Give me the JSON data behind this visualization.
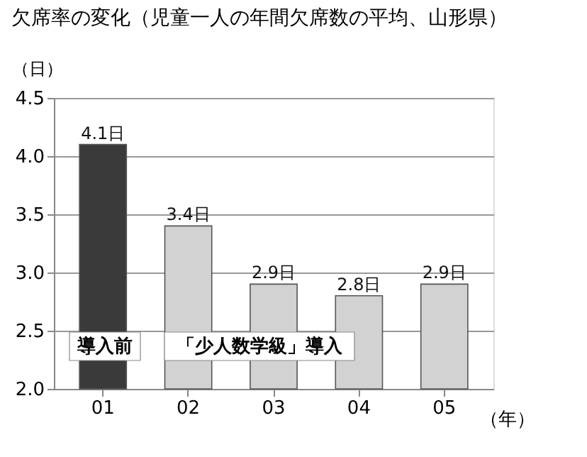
{
  "chart_data": {
    "type": "bar",
    "title": "欠席率の変化（児童一人の年間欠席数の平均、山形県）",
    "categories": [
      "01",
      "02",
      "03",
      "04",
      "05"
    ],
    "values": [
      4.1,
      3.4,
      2.9,
      2.8,
      2.9
    ],
    "colors": [
      "#3a3a3a",
      "#d2d2d2",
      "#d2d2d2",
      "#d2d2d2",
      "#d2d2d2"
    ],
    "value_labels": [
      "4.1日",
      "3.4日",
      "2.9日",
      "2.8日",
      "2.9日"
    ],
    "xlabel": "（年）",
    "ylabel": "（日）",
    "ylim": [
      2.0,
      4.5
    ],
    "yticks": [
      {
        "value": 2,
        "label": "2.0"
      },
      2.5,
      {
        "value": 3,
        "label": "3.0"
      },
      3.5,
      {
        "value": 4,
        "label": "4.0"
      },
      4.5
    ],
    "annotations": [
      "導入前",
      "「少人数学級」導入"
    ],
    "grid": "y"
  }
}
